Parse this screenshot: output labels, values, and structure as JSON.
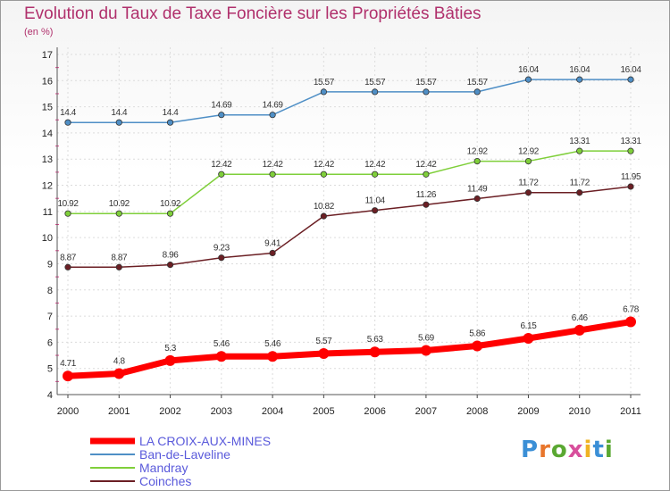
{
  "header": {
    "title": "Evolution du Taux de Taxe Foncière sur les Propriétés Bâties",
    "unit": "(en %)"
  },
  "logo": {
    "text": "Proxiti",
    "colors": [
      "#3b8fd6",
      "#e8762c",
      "#5aa832",
      "#d84f9c",
      "#f0b323",
      "#3b8fd6",
      "#5aa832"
    ]
  },
  "chart_data": {
    "type": "line",
    "x": [
      "2000",
      "2001",
      "2002",
      "2003",
      "2004",
      "2005",
      "2006",
      "2007",
      "2008",
      "2009",
      "2010",
      "2011"
    ],
    "ylim": [
      4,
      17
    ],
    "yticks": [
      4,
      5,
      6,
      7,
      8,
      9,
      10,
      11,
      12,
      13,
      14,
      15,
      16,
      17
    ],
    "grid": true,
    "legend_position": "bottom-left",
    "series": [
      {
        "name": "LA CROIX-AUX-MINES",
        "color": "#ff0000",
        "emphasis": true,
        "values": [
          4.71,
          4.8,
          5.3,
          5.46,
          5.46,
          5.57,
          5.63,
          5.69,
          5.86,
          6.15,
          6.46,
          6.78
        ],
        "labels": [
          "4.71",
          "4.8",
          "5.3",
          "5.46",
          "5.46",
          "5.57",
          "5.63",
          "5.69",
          "5.86",
          "6.15",
          "6.46",
          "6.78"
        ]
      },
      {
        "name": "Ban-de-Laveline",
        "color": "#4f8fc6",
        "emphasis": false,
        "values": [
          14.4,
          14.4,
          14.4,
          14.69,
          14.69,
          15.57,
          15.57,
          15.57,
          15.57,
          16.04,
          16.04,
          16.04
        ],
        "labels": [
          "14.4",
          "14.4",
          "14.4",
          "14.69",
          "14.69",
          "15.57",
          "15.57",
          "15.57",
          "15.57",
          "16.04",
          "16.04",
          "16.04"
        ]
      },
      {
        "name": "Mandray",
        "color": "#7fcf3a",
        "emphasis": false,
        "values": [
          10.92,
          10.92,
          10.92,
          12.42,
          12.42,
          12.42,
          12.42,
          12.42,
          12.92,
          12.92,
          13.31,
          13.31
        ],
        "labels": [
          "10.92",
          "10.92",
          "10.92",
          "12.42",
          "12.42",
          "12.42",
          "12.42",
          "12.42",
          "12.92",
          "12.92",
          "13.31",
          "13.31"
        ]
      },
      {
        "name": "Coinches",
        "color": "#6b1f24",
        "emphasis": false,
        "values": [
          8.87,
          8.87,
          8.96,
          9.23,
          9.41,
          10.82,
          11.04,
          11.26,
          11.49,
          11.72,
          11.72,
          11.95
        ],
        "labels": [
          "8.87",
          "8.87",
          "8.96",
          "9.23",
          "9.41",
          "10.82",
          "11.04",
          "11.26",
          "11.49",
          "11.72",
          "11.72",
          "11.95"
        ]
      }
    ]
  }
}
